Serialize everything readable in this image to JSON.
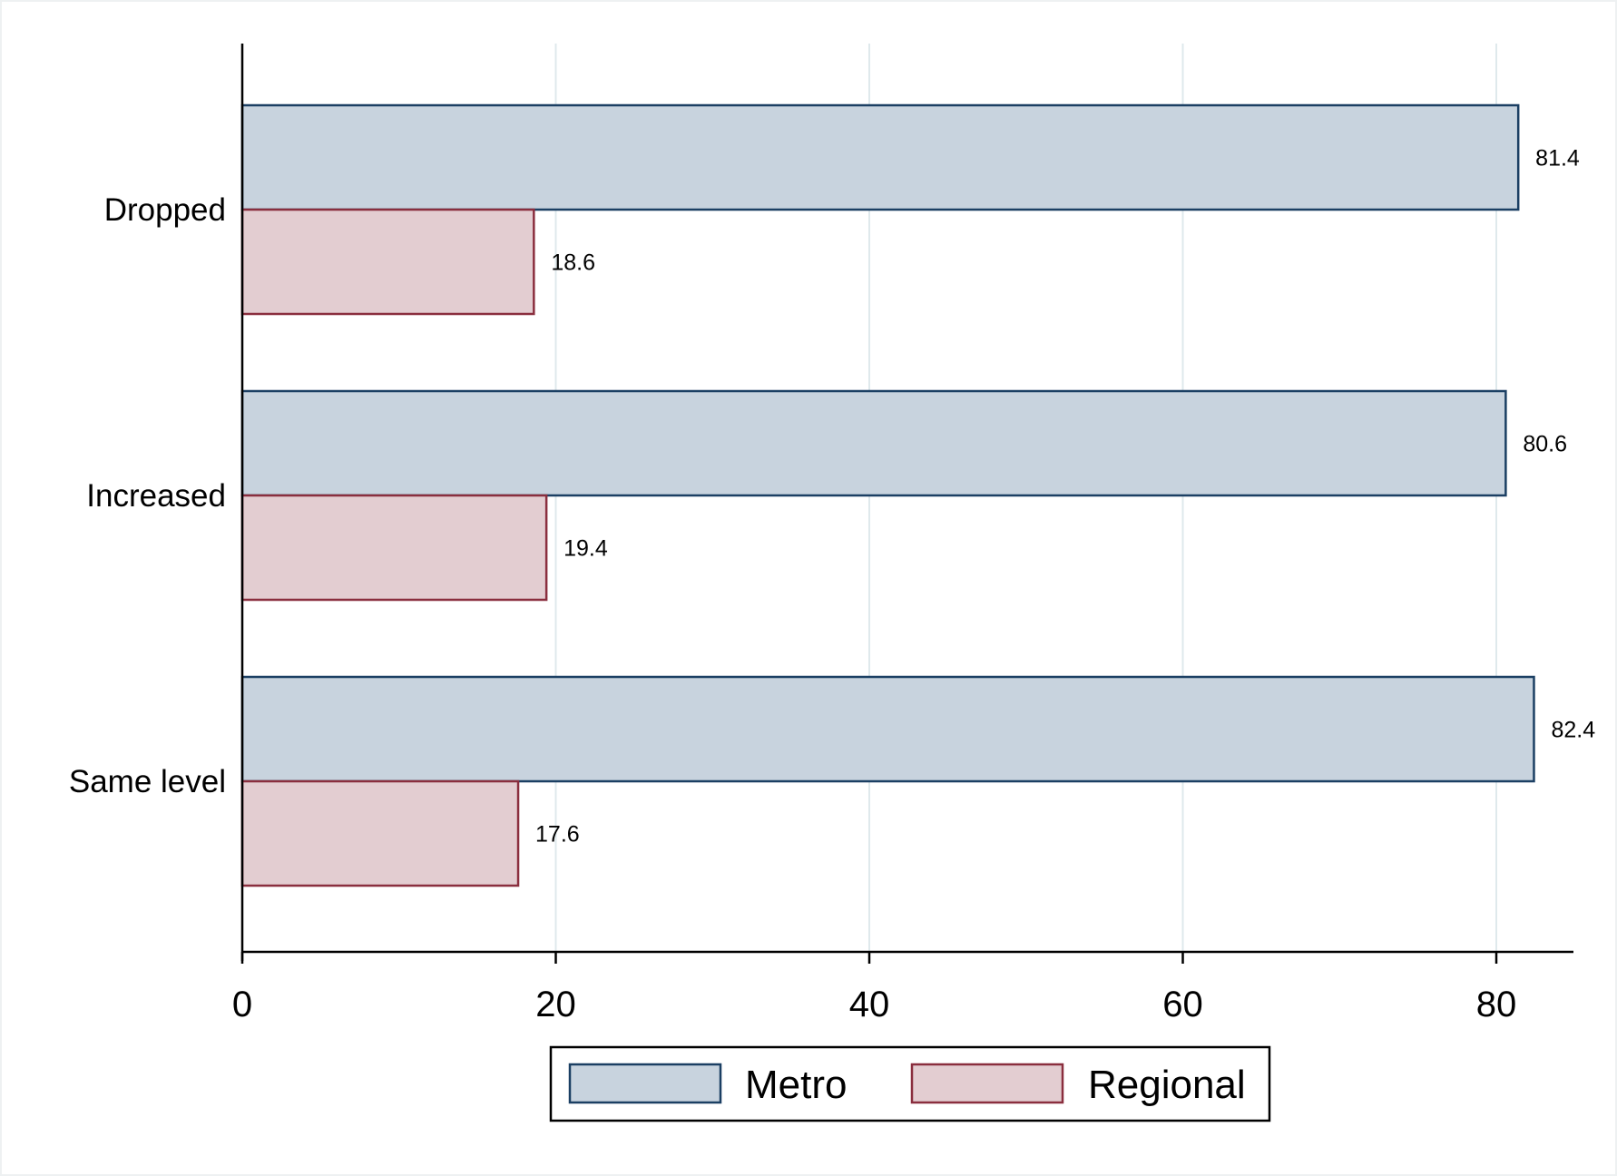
{
  "chart_data": {
    "type": "bar",
    "orientation": "horizontal",
    "categories": [
      "Dropped",
      "Increased",
      "Same level"
    ],
    "series": [
      {
        "name": "Metro",
        "values": [
          81.4,
          80.6,
          82.4
        ],
        "color": "#c8d3de",
        "stroke": "#1b3f63"
      },
      {
        "name": "Regional",
        "values": [
          18.6,
          19.4,
          17.6
        ],
        "color": "#e3cdd1",
        "stroke": "#8a2e3e"
      }
    ],
    "value_labels": [
      [
        "81.4",
        "80.6",
        "82.4"
      ],
      [
        "18.6",
        "19.4",
        "17.6"
      ]
    ],
    "x_ticks": [
      0,
      20,
      40,
      60,
      80
    ],
    "x_tick_labels": [
      "0",
      "20",
      "40",
      "60",
      "80"
    ],
    "xlim": [
      0,
      85
    ],
    "grid": "vertical",
    "legend_position": "bottom",
    "title": "",
    "xlabel": "",
    "ylabel": "",
    "colors": {
      "grid": "#dfe9ec",
      "axis": "#000000",
      "frame": "#eef1f2"
    }
  }
}
